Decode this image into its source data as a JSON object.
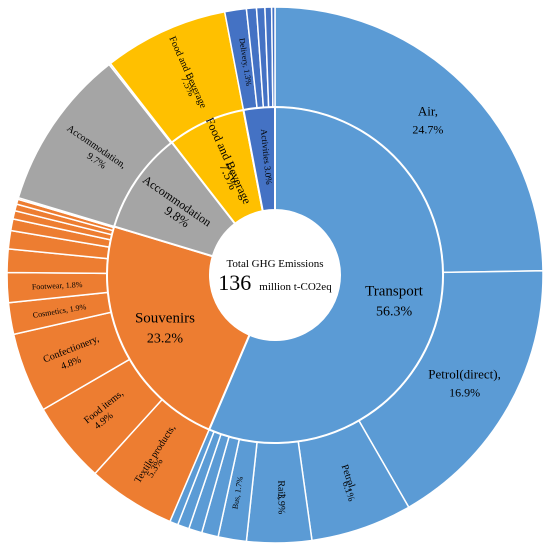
{
  "chart_data": {
    "type": "sunburst",
    "center": {
      "line1": "Total GHG Emissions",
      "value": "136",
      "unit": "million t-CO2eq"
    },
    "colors": {
      "Transport": "#5b9bd5",
      "Souvenirs": "#ed7d31",
      "Accommodation": "#a5a5a5",
      "Food and Beverage": "#ffc000",
      "Activities": "#4472c4"
    },
    "inner_ring": [
      {
        "name": "Transport",
        "value": 56.3,
        "label": "Transport",
        "pct": "56.3%"
      },
      {
        "name": "Souvenirs",
        "value": 23.2,
        "label": "Souvenirs",
        "pct": "23.2%"
      },
      {
        "name": "Accommodation",
        "value": 9.8,
        "label": "Accommodation",
        "pct": "9.8%"
      },
      {
        "name": "Food and Beverage",
        "value": 7.5,
        "label": "Food and Beverage",
        "pct": "7.5%"
      },
      {
        "name": "Activities",
        "value": 3.0,
        "label": "Activities 3.0%",
        "pct": ""
      }
    ],
    "outer_ring": [
      {
        "parent": "Transport",
        "value": 24.7,
        "label": "Air,",
        "pct": "24.7%"
      },
      {
        "parent": "Transport",
        "value": 16.9,
        "label": "Petrol(direct),",
        "pct": "16.9%"
      },
      {
        "parent": "Transport",
        "value": 6.1,
        "label": "Petrol,",
        "pct": "6.1%"
      },
      {
        "parent": "Transport",
        "value": 3.9,
        "label": "Rail,",
        "pct": "3.9%"
      },
      {
        "parent": "Transport",
        "value": 1.7,
        "label": "Bus, 1.7%",
        "pct": ""
      },
      {
        "parent": "Transport",
        "value": 1.0,
        "label": "",
        "pct": ""
      },
      {
        "parent": "Transport",
        "value": 0.8,
        "label": "",
        "pct": ""
      },
      {
        "parent": "Transport",
        "value": 0.7,
        "label": "",
        "pct": ""
      },
      {
        "parent": "Transport",
        "value": 0.5,
        "label": "",
        "pct": ""
      },
      {
        "parent": "Souvenirs",
        "value": 5.3,
        "label": "Textile products,",
        "pct": "5.3%"
      },
      {
        "parent": "Souvenirs",
        "value": 4.9,
        "label": "Food items,",
        "pct": "4.9%"
      },
      {
        "parent": "Souvenirs",
        "value": 4.8,
        "label": "Confectionery,",
        "pct": "4.8%"
      },
      {
        "parent": "Souvenirs",
        "value": 1.9,
        "label": "Cosmetics, 1.9%",
        "pct": ""
      },
      {
        "parent": "Souvenirs",
        "value": 1.8,
        "label": "Footwear, 1.8%",
        "pct": ""
      },
      {
        "parent": "Souvenirs",
        "value": 1.4,
        "label": "",
        "pct": ""
      },
      {
        "parent": "Souvenirs",
        "value": 1.1,
        "label": "",
        "pct": ""
      },
      {
        "parent": "Souvenirs",
        "value": 0.7,
        "label": "",
        "pct": ""
      },
      {
        "parent": "Souvenirs",
        "value": 0.5,
        "label": "",
        "pct": ""
      },
      {
        "parent": "Souvenirs",
        "value": 0.4,
        "label": "",
        "pct": ""
      },
      {
        "parent": "Souvenirs",
        "value": 0.3,
        "label": "",
        "pct": ""
      },
      {
        "parent": "Souvenirs",
        "value": 0.1,
        "label": "",
        "pct": ""
      },
      {
        "parent": "Accommodation",
        "value": 9.7,
        "label": "Accommodation,",
        "pct": "9.7%"
      },
      {
        "parent": "Accommodation",
        "value": 0.1,
        "label": "",
        "pct": ""
      },
      {
        "parent": "Food and Beverage",
        "value": 7.5,
        "label": "Food and Beverage",
        "pct": "7.5%"
      },
      {
        "parent": "Activities",
        "value": 1.3,
        "label": "Delivery, 1.3%",
        "pct": ""
      },
      {
        "parent": "Activities",
        "value": 0.6,
        "label": "",
        "pct": ""
      },
      {
        "parent": "Activities",
        "value": 0.5,
        "label": "",
        "pct": ""
      },
      {
        "parent": "Activities",
        "value": 0.4,
        "label": "",
        "pct": ""
      },
      {
        "parent": "Activities",
        "value": 0.2,
        "label": "",
        "pct": ""
      }
    ]
  }
}
